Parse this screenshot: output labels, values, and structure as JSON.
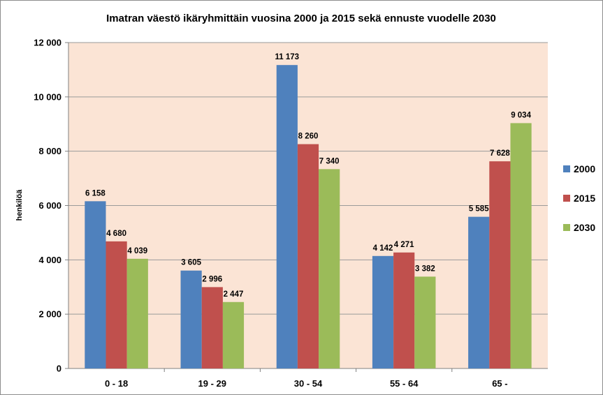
{
  "chart_data": {
    "type": "bar",
    "title": "Imatran väestö ikäryhmittäin vuosina 2000 ja 2015 sekä ennuste vuodelle 2030",
    "xlabel": "",
    "ylabel": "henkilöä",
    "ylim": [
      0,
      12000
    ],
    "yticks": [
      0,
      2000,
      4000,
      6000,
      8000,
      10000,
      12000
    ],
    "ytick_labels": [
      "0",
      "2 000",
      "4 000",
      "6 000",
      "8 000",
      "10 000",
      "12 000"
    ],
    "grid": true,
    "legend_position": "right",
    "plot_background": "#fbe4d5",
    "categories": [
      "0 - 18",
      "19 - 29",
      "30 - 54",
      "55 - 64",
      "65 -"
    ],
    "series": [
      {
        "name": "2000",
        "color": "#4f81bd",
        "values": [
          6158,
          3605,
          11173,
          4142,
          5585
        ],
        "labels": [
          "6 158",
          "3 605",
          "11 173",
          "4 142",
          "5 585"
        ]
      },
      {
        "name": "2015",
        "color": "#c0504d",
        "values": [
          4680,
          2996,
          8260,
          4271,
          7628
        ],
        "labels": [
          "4 680",
          "2 996",
          "8 260",
          "4 271",
          "7 628"
        ]
      },
      {
        "name": "2030",
        "color": "#9bbb59",
        "values": [
          4039,
          2447,
          7340,
          3382,
          9034
        ],
        "labels": [
          "4 039",
          "2 447",
          "7 340",
          "3 382",
          "9 034"
        ]
      }
    ]
  }
}
